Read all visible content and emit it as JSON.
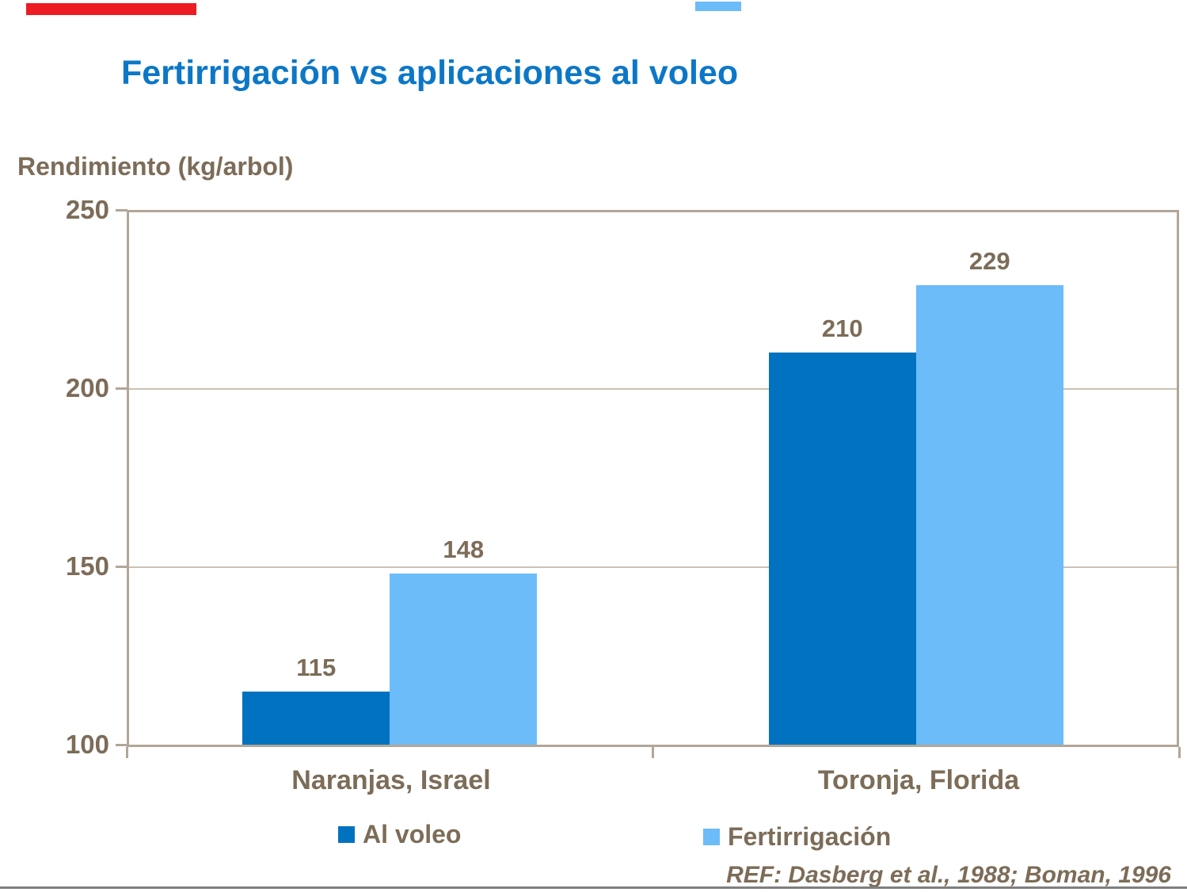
{
  "slide": {
    "title": "Fertirrigación vs aplicaciones al voleo",
    "title_color": "#0C77C7",
    "text_color": "#7C6C58",
    "reference": "REF: Dasberg et al., 1988; Boman, 1996",
    "decor": {
      "top_left_bar_color": "#EC1C24",
      "top_right_bar_color": "#6BBCF9",
      "bottom_rule_color": "#7F7F7F"
    }
  },
  "chart_data": {
    "type": "bar",
    "title": "Fertirrigación vs aplicaciones al voleo",
    "xlabel": "",
    "ylabel": "Rendimiento (kg/arbol)",
    "categories": [
      "Naranjas, Israel",
      "Toronja, Florida"
    ],
    "series": [
      {
        "name": "Al voleo",
        "values": [
          115,
          210
        ],
        "color": "#0072BF"
      },
      {
        "name": "Fertirrigación",
        "values": [
          148,
          229
        ],
        "color": "#6BBCF9"
      }
    ],
    "ylim": [
      100,
      250
    ],
    "yticks": [
      100,
      150,
      200,
      250
    ],
    "grid": true,
    "legend_position": "bottom",
    "annotation": "REF: Dasberg et al., 1988; Boman, 1996"
  }
}
